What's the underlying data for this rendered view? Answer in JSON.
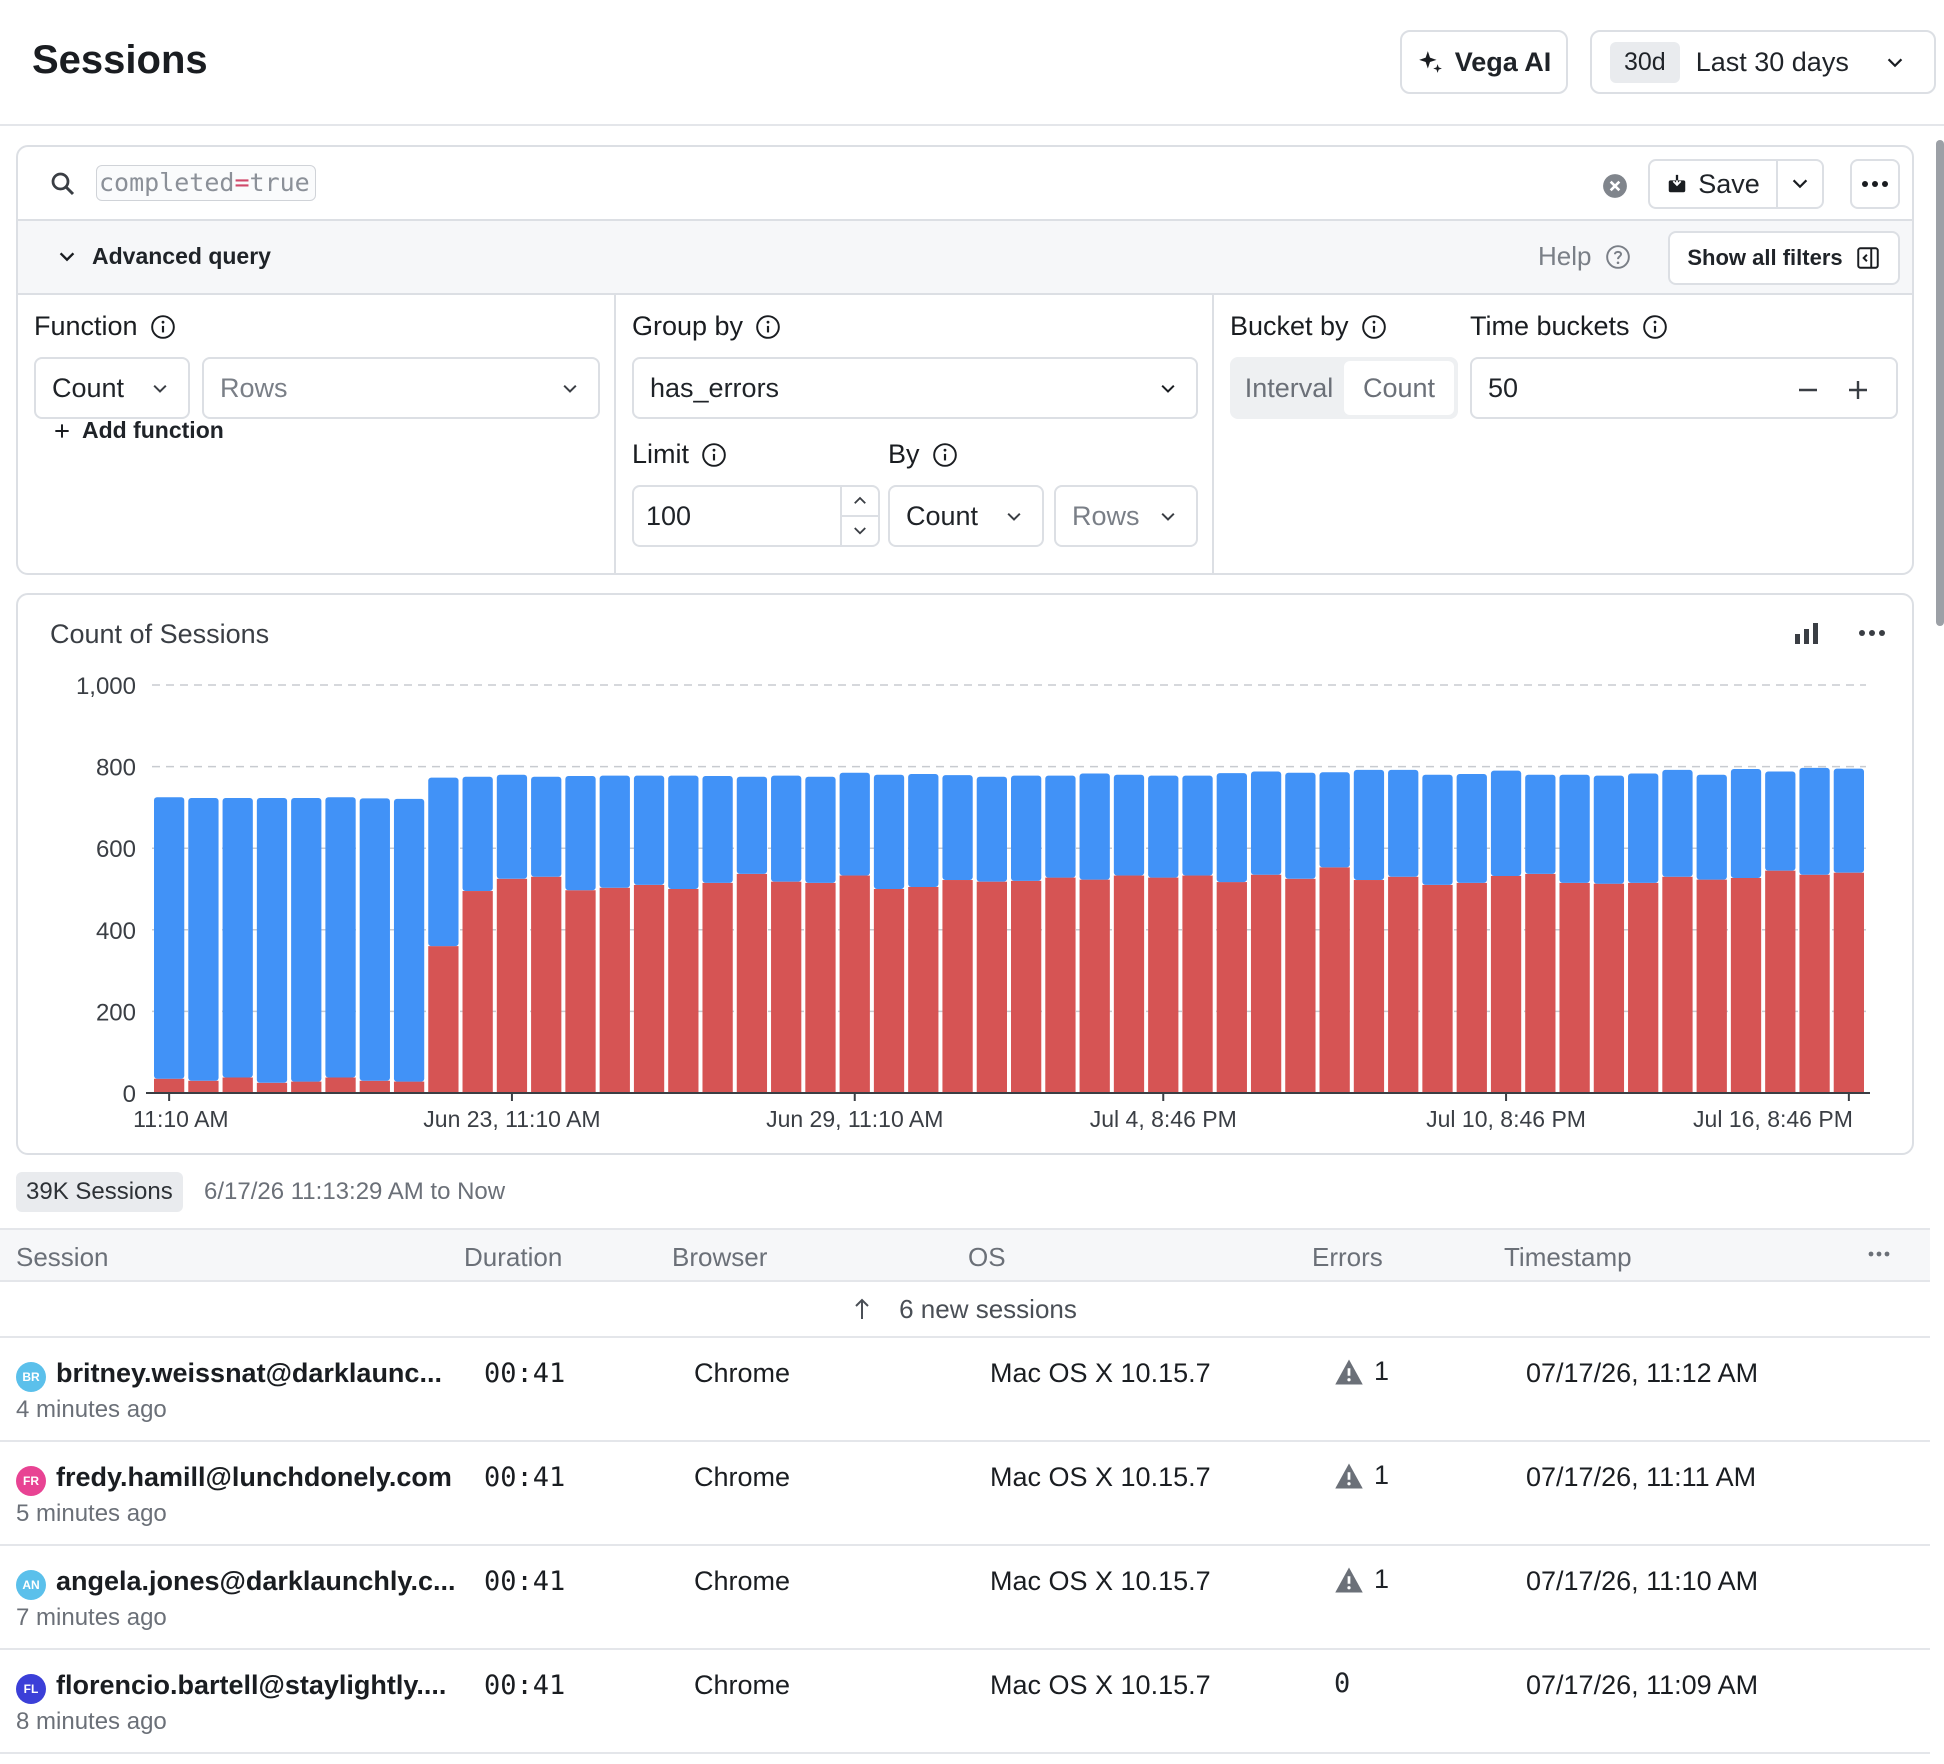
{
  "header": {
    "title": "Sessions",
    "vega_label": "Vega AI",
    "range_chip": "30d",
    "range_label": "Last 30 days"
  },
  "search": {
    "key": "completed",
    "op": "=",
    "value": "true",
    "save_label": "Save"
  },
  "advanced": {
    "toggle_label": "Advanced query",
    "help_label": "Help",
    "show_filters_label": "Show all filters"
  },
  "function": {
    "label": "Function",
    "agg": "Count",
    "field_placeholder": "Rows",
    "add_label": "Add function"
  },
  "group": {
    "label": "Group by",
    "value": "has_errors",
    "limit_label": "Limit",
    "limit_value": "100",
    "by_label": "By",
    "by_agg": "Count",
    "by_field": "Rows"
  },
  "bucket": {
    "label": "Bucket by",
    "opt_interval": "Interval",
    "opt_count": "Count",
    "buckets_label": "Time buckets",
    "buckets_value": "50"
  },
  "chart_data": {
    "type": "bar",
    "stacked": true,
    "title": "Count of Sessions",
    "ylim": [
      0,
      1000
    ],
    "yticks": [
      0,
      200,
      400,
      600,
      800,
      1000
    ],
    "ytick_labels": [
      "0",
      "200",
      "400",
      "600",
      "800",
      "1,000"
    ],
    "x_tick_labels": [
      {
        "label": "11:10 AM",
        "index": 0
      },
      {
        "label": "Jun 23, 11:10 AM",
        "index": 10
      },
      {
        "label": "Jun 29, 11:10 AM",
        "index": 20
      },
      {
        "label": "Jul 4, 8:46 PM",
        "index": 29
      },
      {
        "label": "Jul 10, 8:46 PM",
        "index": 39
      },
      {
        "label": "Jul 16, 8:46 PM",
        "index": 49
      }
    ],
    "grid": "horizontal-dashed",
    "series": [
      {
        "color": "#d65454",
        "values": [
          35,
          30,
          38,
          25,
          28,
          38,
          30,
          28,
          360,
          495,
          525,
          530,
          497,
          503,
          510,
          500,
          515,
          537,
          518,
          515,
          533,
          500,
          505,
          522,
          518,
          520,
          528,
          523,
          533,
          528,
          533,
          517,
          535,
          525,
          553,
          522,
          530,
          510,
          515,
          532,
          537,
          515,
          513,
          515,
          530,
          523,
          527,
          545,
          535,
          540
        ]
      },
      {
        "color": "#4192f7",
        "values": [
          690,
          693,
          685,
          698,
          695,
          687,
          692,
          693,
          413,
          280,
          255,
          245,
          280,
          275,
          268,
          278,
          262,
          238,
          260,
          260,
          252,
          280,
          277,
          257,
          257,
          258,
          250,
          260,
          247,
          250,
          245,
          267,
          253,
          260,
          233,
          270,
          262,
          270,
          267,
          258,
          243,
          265,
          265,
          268,
          262,
          257,
          267,
          243,
          262,
          255
        ]
      }
    ]
  },
  "summary": {
    "count_label": "39K Sessions",
    "range_text": "6/17/26 11:13:29 AM to Now"
  },
  "table": {
    "columns": [
      "Session",
      "Duration",
      "Browser",
      "OS",
      "Errors",
      "Timestamp"
    ],
    "new_sessions": "6 new sessions",
    "rows": [
      {
        "initials": "BR",
        "avatar_color": "#5bc0eb",
        "email": "britney.weissnat@darklaunc...",
        "ago": "4 minutes ago",
        "duration": "00:41",
        "browser": "Chrome",
        "os": "Mac OS X 10.15.7",
        "errors": "1",
        "timestamp": "07/17/26, 11:12 AM"
      },
      {
        "initials": "FR",
        "avatar_color": "#e84393",
        "email": "fredy.hamill@lunchdonely.com",
        "ago": "5 minutes ago",
        "duration": "00:41",
        "browser": "Chrome",
        "os": "Mac OS X 10.15.7",
        "errors": "1",
        "timestamp": "07/17/26, 11:11 AM"
      },
      {
        "initials": "AN",
        "avatar_color": "#5bc0eb",
        "email": "angela.jones@darklaunchly.c...",
        "ago": "7 minutes ago",
        "duration": "00:41",
        "browser": "Chrome",
        "os": "Mac OS X 10.15.7",
        "errors": "1",
        "timestamp": "07/17/26, 11:10 AM"
      },
      {
        "initials": "FL",
        "avatar_color": "#3b3fd8",
        "email": "florencio.bartell@staylightly....",
        "ago": "8 minutes ago",
        "duration": "00:41",
        "browser": "Chrome",
        "os": "Mac OS X 10.15.7",
        "errors": "0",
        "timestamp": "07/17/26, 11:09 AM"
      }
    ]
  }
}
